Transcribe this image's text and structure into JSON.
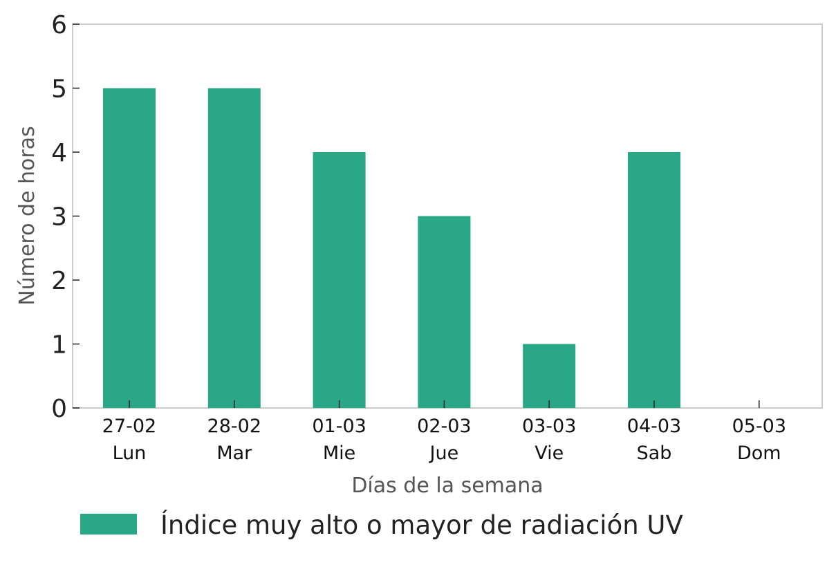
{
  "chart_data": {
    "type": "bar",
    "title": "",
    "xlabel": "Días de la semana",
    "ylabel": "Número de horas",
    "categories": [
      {
        "date": "27-02",
        "day": "Lun"
      },
      {
        "date": "28-02",
        "day": "Mar"
      },
      {
        "date": "01-03",
        "day": "Mie"
      },
      {
        "date": "02-03",
        "day": "Jue"
      },
      {
        "date": "03-03",
        "day": "Vie"
      },
      {
        "date": "04-03",
        "day": "Sab"
      },
      {
        "date": "05-03",
        "day": "Dom"
      }
    ],
    "series": [
      {
        "name": "Índice muy alto o mayor de radiación UV",
        "values": [
          5,
          5,
          4,
          3,
          1,
          4,
          0
        ],
        "color": "#29a787"
      }
    ],
    "ylim": [
      0,
      6
    ],
    "yticks": [
      0,
      1,
      2,
      3,
      4,
      5,
      6
    ],
    "grid": false,
    "legend_position": "bottom-left"
  }
}
